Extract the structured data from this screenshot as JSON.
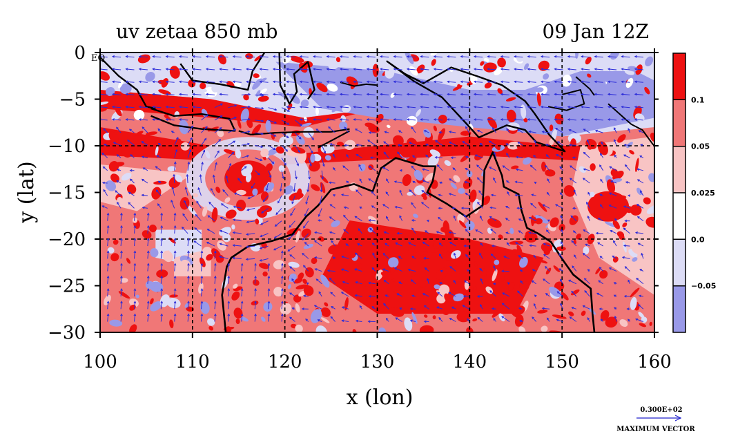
{
  "title": {
    "left": "uv zetaa 850 mb",
    "right": "09 Jan 12Z"
  },
  "axes": {
    "xlabel": "x (lon)",
    "ylabel": "y (lat)",
    "xlim": [
      100,
      160
    ],
    "ylim": [
      -30,
      0
    ],
    "x_ticks": [
      "100",
      "110",
      "120",
      "130",
      "140",
      "150",
      "160"
    ],
    "y_ticks": [
      "0",
      "−5",
      "−10",
      "−15",
      "−20",
      "−25",
      "−30"
    ],
    "eq_label": "EQ"
  },
  "colorbar": {
    "labels": [
      "0.1",
      "0.05",
      "0.025",
      "0.0",
      "−0.05"
    ],
    "colors": [
      "#ee1111",
      "#f07777",
      "#f8c4c4",
      "#ffffff",
      "#dcdcf6",
      "#9999e8"
    ]
  },
  "vector_key": {
    "value": "0.300E+02",
    "label": "MAXIMUM VECTOR",
    "color": "#2222cc"
  },
  "colors": {
    "strong_pos": "#ee1111",
    "mid_pos": "#f07777",
    "weak_pos": "#f8c4c4",
    "weak_neg": "#dcdcf6",
    "strong_neg": "#9999e8",
    "vector": "#2b2bd8",
    "coast": "#000000"
  },
  "features": {
    "cyclone_center": [
      116,
      -13.5
    ],
    "storm_center_east": [
      155,
      -16.5
    ]
  }
}
